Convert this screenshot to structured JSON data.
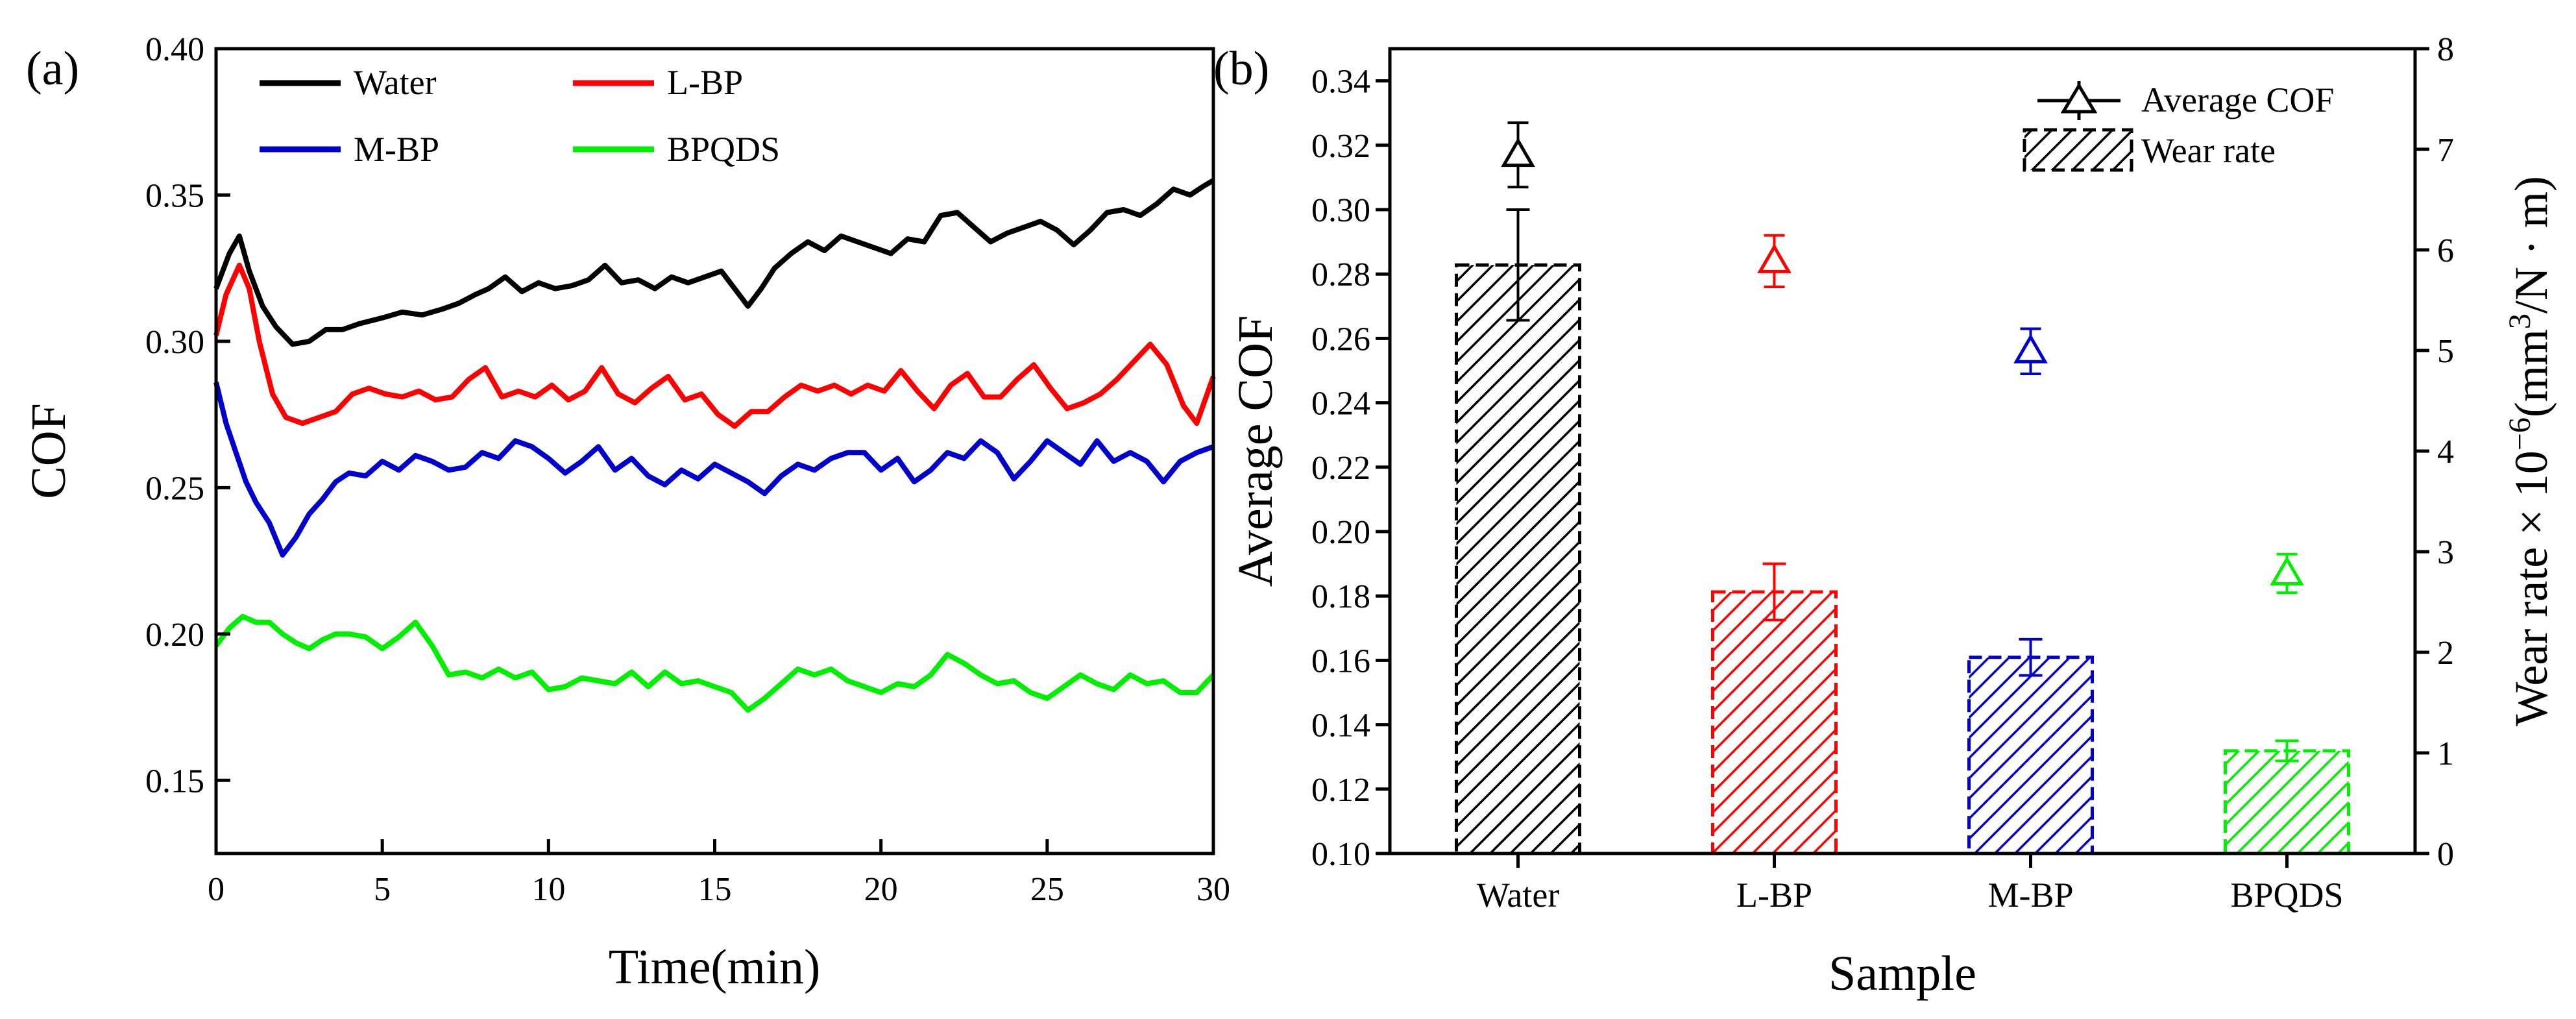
{
  "chart_data": [
    {
      "panel": "(a)",
      "type": "line",
      "xlabel": "Time(min)",
      "ylabel": "COF",
      "xlim": [
        0,
        30
      ],
      "ylim": [
        0.125,
        0.4
      ],
      "xticks": [
        0,
        5,
        10,
        15,
        20,
        25,
        30
      ],
      "yticks": [
        0.15,
        0.2,
        0.25,
        0.3,
        0.35,
        0.4
      ],
      "legend": "top, two columns",
      "series": [
        {
          "name": "Water",
          "color": "#000000",
          "points": [
            [
              0,
              0.318
            ],
            [
              0.4,
              0.33
            ],
            [
              0.7,
              0.336
            ],
            [
              1.0,
              0.324
            ],
            [
              1.4,
              0.312
            ],
            [
              1.8,
              0.305
            ],
            [
              2.3,
              0.299
            ],
            [
              2.8,
              0.3
            ],
            [
              3.3,
              0.304
            ],
            [
              3.8,
              0.304
            ],
            [
              4.3,
              0.306
            ],
            [
              5.0,
              0.308
            ],
            [
              5.6,
              0.31
            ],
            [
              6.2,
              0.309
            ],
            [
              6.8,
              0.311
            ],
            [
              7.3,
              0.313
            ],
            [
              7.8,
              0.316
            ],
            [
              8.2,
              0.318
            ],
            [
              8.7,
              0.322
            ],
            [
              9.2,
              0.317
            ],
            [
              9.7,
              0.32
            ],
            [
              10.2,
              0.318
            ],
            [
              10.7,
              0.319
            ],
            [
              11.2,
              0.321
            ],
            [
              11.7,
              0.326
            ],
            [
              12.2,
              0.32
            ],
            [
              12.7,
              0.321
            ],
            [
              13.2,
              0.318
            ],
            [
              13.7,
              0.322
            ],
            [
              14.2,
              0.32
            ],
            [
              14.7,
              0.322
            ],
            [
              15.2,
              0.324
            ],
            [
              15.6,
              0.318
            ],
            [
              16.0,
              0.312
            ],
            [
              16.4,
              0.318
            ],
            [
              16.8,
              0.325
            ],
            [
              17.3,
              0.33
            ],
            [
              17.8,
              0.334
            ],
            [
              18.3,
              0.331
            ],
            [
              18.8,
              0.336
            ],
            [
              19.3,
              0.334
            ],
            [
              19.8,
              0.332
            ],
            [
              20.3,
              0.33
            ],
            [
              20.8,
              0.335
            ],
            [
              21.3,
              0.334
            ],
            [
              21.8,
              0.343
            ],
            [
              22.3,
              0.344
            ],
            [
              22.8,
              0.339
            ],
            [
              23.3,
              0.334
            ],
            [
              23.8,
              0.337
            ],
            [
              24.3,
              0.339
            ],
            [
              24.8,
              0.341
            ],
            [
              25.3,
              0.338
            ],
            [
              25.8,
              0.333
            ],
            [
              26.3,
              0.338
            ],
            [
              26.8,
              0.344
            ],
            [
              27.3,
              0.345
            ],
            [
              27.8,
              0.343
            ],
            [
              28.3,
              0.347
            ],
            [
              28.8,
              0.352
            ],
            [
              29.3,
              0.35
            ],
            [
              29.7,
              0.353
            ],
            [
              30.0,
              0.355
            ]
          ]
        },
        {
          "name": "L-BP",
          "color": "#ff0000",
          "points": [
            [
              0,
              0.302
            ],
            [
              0.3,
              0.316
            ],
            [
              0.7,
              0.326
            ],
            [
              1.0,
              0.318
            ],
            [
              1.3,
              0.3
            ],
            [
              1.7,
              0.282
            ],
            [
              2.1,
              0.274
            ],
            [
              2.6,
              0.272
            ],
            [
              3.1,
              0.274
            ],
            [
              3.6,
              0.276
            ],
            [
              4.1,
              0.282
            ],
            [
              4.6,
              0.284
            ],
            [
              5.1,
              0.282
            ],
            [
              5.6,
              0.281
            ],
            [
              6.1,
              0.283
            ],
            [
              6.6,
              0.28
            ],
            [
              7.1,
              0.281
            ],
            [
              7.6,
              0.287
            ],
            [
              8.1,
              0.291
            ],
            [
              8.6,
              0.281
            ],
            [
              9.1,
              0.283
            ],
            [
              9.6,
              0.281
            ],
            [
              10.1,
              0.285
            ],
            [
              10.6,
              0.28
            ],
            [
              11.1,
              0.283
            ],
            [
              11.6,
              0.291
            ],
            [
              12.1,
              0.282
            ],
            [
              12.6,
              0.279
            ],
            [
              13.1,
              0.284
            ],
            [
              13.6,
              0.288
            ],
            [
              14.1,
              0.28
            ],
            [
              14.6,
              0.282
            ],
            [
              15.1,
              0.275
            ],
            [
              15.6,
              0.271
            ],
            [
              16.1,
              0.276
            ],
            [
              16.6,
              0.276
            ],
            [
              17.1,
              0.281
            ],
            [
              17.6,
              0.285
            ],
            [
              18.1,
              0.283
            ],
            [
              18.6,
              0.285
            ],
            [
              19.1,
              0.282
            ],
            [
              19.6,
              0.285
            ],
            [
              20.1,
              0.283
            ],
            [
              20.6,
              0.29
            ],
            [
              21.1,
              0.283
            ],
            [
              21.6,
              0.277
            ],
            [
              22.1,
              0.285
            ],
            [
              22.6,
              0.289
            ],
            [
              23.1,
              0.281
            ],
            [
              23.6,
              0.281
            ],
            [
              24.1,
              0.287
            ],
            [
              24.6,
              0.292
            ],
            [
              25.1,
              0.284
            ],
            [
              25.6,
              0.277
            ],
            [
              26.1,
              0.279
            ],
            [
              26.6,
              0.282
            ],
            [
              27.1,
              0.287
            ],
            [
              27.6,
              0.293
            ],
            [
              28.1,
              0.299
            ],
            [
              28.6,
              0.292
            ],
            [
              29.1,
              0.278
            ],
            [
              29.5,
              0.272
            ],
            [
              30.0,
              0.288
            ]
          ]
        },
        {
          "name": "M-BP",
          "color": "#0000cc",
          "points": [
            [
              0,
              0.286
            ],
            [
              0.3,
              0.272
            ],
            [
              0.6,
              0.262
            ],
            [
              0.9,
              0.252
            ],
            [
              1.2,
              0.245
            ],
            [
              1.6,
              0.238
            ],
            [
              2.0,
              0.227
            ],
            [
              2.4,
              0.233
            ],
            [
              2.8,
              0.241
            ],
            [
              3.2,
              0.246
            ],
            [
              3.6,
              0.252
            ],
            [
              4.0,
              0.255
            ],
            [
              4.5,
              0.254
            ],
            [
              5.0,
              0.259
            ],
            [
              5.5,
              0.256
            ],
            [
              6.0,
              0.261
            ],
            [
              6.5,
              0.259
            ],
            [
              7.0,
              0.256
            ],
            [
              7.5,
              0.257
            ],
            [
              8.0,
              0.262
            ],
            [
              8.5,
              0.26
            ],
            [
              9.0,
              0.266
            ],
            [
              9.5,
              0.264
            ],
            [
              10.0,
              0.26
            ],
            [
              10.5,
              0.255
            ],
            [
              11.0,
              0.259
            ],
            [
              11.5,
              0.264
            ],
            [
              12.0,
              0.256
            ],
            [
              12.5,
              0.26
            ],
            [
              13.0,
              0.254
            ],
            [
              13.5,
              0.251
            ],
            [
              14.0,
              0.256
            ],
            [
              14.5,
              0.253
            ],
            [
              15.0,
              0.258
            ],
            [
              15.5,
              0.255
            ],
            [
              16.0,
              0.252
            ],
            [
              16.5,
              0.248
            ],
            [
              17.0,
              0.254
            ],
            [
              17.5,
              0.258
            ],
            [
              18.0,
              0.256
            ],
            [
              18.5,
              0.26
            ],
            [
              19.0,
              0.262
            ],
            [
              19.5,
              0.262
            ],
            [
              20.0,
              0.256
            ],
            [
              20.5,
              0.26
            ],
            [
              21.0,
              0.252
            ],
            [
              21.5,
              0.256
            ],
            [
              22.0,
              0.262
            ],
            [
              22.5,
              0.26
            ],
            [
              23.0,
              0.266
            ],
            [
              23.5,
              0.262
            ],
            [
              24.0,
              0.253
            ],
            [
              24.5,
              0.259
            ],
            [
              25.0,
              0.266
            ],
            [
              25.5,
              0.262
            ],
            [
              26.0,
              0.258
            ],
            [
              26.5,
              0.266
            ],
            [
              27.0,
              0.259
            ],
            [
              27.5,
              0.262
            ],
            [
              28.0,
              0.259
            ],
            [
              28.5,
              0.252
            ],
            [
              29.0,
              0.259
            ],
            [
              29.5,
              0.262
            ],
            [
              30.0,
              0.264
            ]
          ]
        },
        {
          "name": "BPQDS",
          "color": "#00ee00",
          "points": [
            [
              0,
              0.196
            ],
            [
              0.4,
              0.202
            ],
            [
              0.8,
              0.206
            ],
            [
              1.2,
              0.204
            ],
            [
              1.6,
              0.204
            ],
            [
              2.0,
              0.2
            ],
            [
              2.4,
              0.197
            ],
            [
              2.8,
              0.195
            ],
            [
              3.2,
              0.198
            ],
            [
              3.6,
              0.2
            ],
            [
              4.0,
              0.2
            ],
            [
              4.5,
              0.199
            ],
            [
              5.0,
              0.195
            ],
            [
              5.5,
              0.199
            ],
            [
              6.0,
              0.204
            ],
            [
              6.5,
              0.196
            ],
            [
              7.0,
              0.186
            ],
            [
              7.5,
              0.187
            ],
            [
              8.0,
              0.185
            ],
            [
              8.5,
              0.188
            ],
            [
              9.0,
              0.185
            ],
            [
              9.5,
              0.187
            ],
            [
              10.0,
              0.181
            ],
            [
              10.5,
              0.182
            ],
            [
              11.0,
              0.185
            ],
            [
              11.5,
              0.184
            ],
            [
              12.0,
              0.183
            ],
            [
              12.5,
              0.187
            ],
            [
              13.0,
              0.182
            ],
            [
              13.5,
              0.187
            ],
            [
              14.0,
              0.183
            ],
            [
              14.5,
              0.184
            ],
            [
              15.0,
              0.182
            ],
            [
              15.5,
              0.18
            ],
            [
              16.0,
              0.174
            ],
            [
              16.5,
              0.178
            ],
            [
              17.0,
              0.183
            ],
            [
              17.5,
              0.188
            ],
            [
              18.0,
              0.186
            ],
            [
              18.5,
              0.188
            ],
            [
              19.0,
              0.184
            ],
            [
              19.5,
              0.182
            ],
            [
              20.0,
              0.18
            ],
            [
              20.5,
              0.183
            ],
            [
              21.0,
              0.182
            ],
            [
              21.5,
              0.186
            ],
            [
              22.0,
              0.193
            ],
            [
              22.5,
              0.19
            ],
            [
              23.0,
              0.186
            ],
            [
              23.5,
              0.183
            ],
            [
              24.0,
              0.184
            ],
            [
              24.5,
              0.18
            ],
            [
              25.0,
              0.178
            ],
            [
              25.5,
              0.182
            ],
            [
              26.0,
              0.186
            ],
            [
              26.5,
              0.183
            ],
            [
              27.0,
              0.181
            ],
            [
              27.5,
              0.186
            ],
            [
              28.0,
              0.183
            ],
            [
              28.5,
              0.184
            ],
            [
              29.0,
              0.18
            ],
            [
              29.5,
              0.18
            ],
            [
              30.0,
              0.186
            ]
          ]
        }
      ]
    },
    {
      "panel": "(b)",
      "type": "bar",
      "xlabel": "Sample",
      "ylabel": "Average COF",
      "y2label_prefix": "Wear rate × 10",
      "y2label_exp": "−6",
      "y2label_mid": "(mm",
      "y2label_exp2": "3",
      "y2label_suffix": "/N · m)",
      "categories": [
        "Water",
        "L-BP",
        "M-BP",
        "BPQDS"
      ],
      "colors": [
        "#000000",
        "#ff0000",
        "#0000cc",
        "#00ee00"
      ],
      "ylim": [
        0.1,
        0.35
      ],
      "yticks": [
        0.1,
        0.12,
        0.14,
        0.16,
        0.18,
        0.2,
        0.22,
        0.24,
        0.26,
        0.28,
        0.3,
        0.32,
        0.34
      ],
      "y2lim": [
        0,
        8
      ],
      "y2ticks": [
        0,
        1,
        2,
        3,
        4,
        5,
        6,
        7,
        8
      ],
      "legend": "top-right",
      "legend_entries": [
        "Average COF",
        "Wear rate"
      ],
      "series": [
        {
          "name": "Wear rate",
          "kind": "bar",
          "axis": "right",
          "values": [
            5.85,
            2.6,
            1.95,
            1.02
          ],
          "errors": [
            0.55,
            0.28,
            0.18,
            0.1
          ]
        },
        {
          "name": "Average COF",
          "kind": "marker",
          "axis": "left",
          "values": [
            0.317,
            0.284,
            0.256,
            0.187
          ],
          "errors": [
            0.01,
            0.008,
            0.007,
            0.006
          ]
        }
      ]
    }
  ]
}
